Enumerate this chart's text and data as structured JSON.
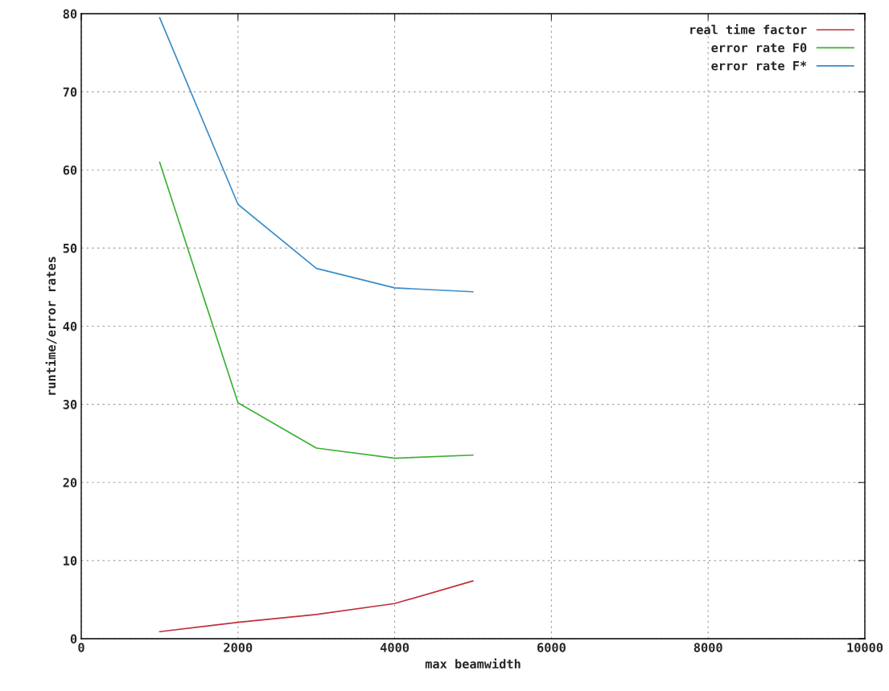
{
  "chart_data": {
    "type": "line",
    "xlabel": "max beamwidth",
    "ylabel": "runtime/error rates",
    "x": [
      1000,
      2000,
      3000,
      4000,
      5000
    ],
    "series": [
      {
        "name": "real time factor",
        "color": "#c0303a",
        "values": [
          0.9,
          2.1,
          3.1,
          4.5,
          7.4
        ]
      },
      {
        "name": "error rate F0",
        "color": "#3cb034",
        "values": [
          61,
          30.2,
          24.4,
          23.1,
          23.5
        ]
      },
      {
        "name": "error rate F*",
        "color": "#3a8cc8",
        "values": [
          79.5,
          55.6,
          47.4,
          44.9,
          44.4
        ]
      }
    ],
    "xlim": [
      0,
      10000
    ],
    "xticks": [
      0,
      2000,
      4000,
      6000,
      8000,
      10000
    ],
    "ylim": [
      0,
      80
    ],
    "yticks": [
      0,
      10,
      20,
      30,
      40,
      50,
      60,
      70,
      80
    ],
    "grid": true,
    "legend": "top right",
    "marker": "none",
    "line_style": "solid"
  }
}
